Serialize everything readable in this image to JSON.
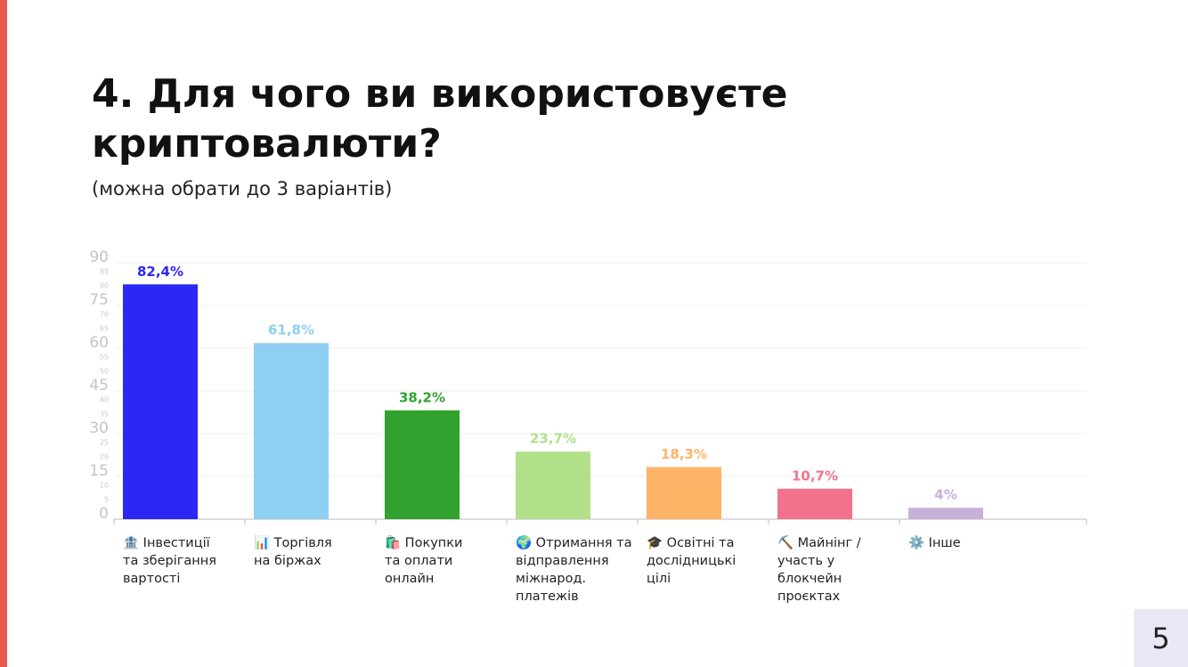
{
  "chart_data": {
    "type": "bar",
    "title": "4. Для чого ви використовуєте криптовалюти?",
    "subtitle": "(можна обрати до 3 варіантів)",
    "categories": [
      [
        "🏦 Інвестиції",
        "та зберігання",
        "вартості"
      ],
      [
        "📊 Торгівля",
        "на біржах"
      ],
      [
        "🛍️ Покупки",
        "та оплати",
        "онлайн"
      ],
      [
        "🌍 Отримання та",
        "відправлення",
        "міжнарод.",
        "платежів"
      ],
      [
        "🎓 Освітні та",
        "дослідницькі",
        "цілі"
      ],
      [
        "⛏️ Майнінг /",
        "участь у",
        "блокчейн",
        "проєктах"
      ],
      [
        "⚙️ Інше"
      ]
    ],
    "values": [
      82.4,
      61.8,
      38.2,
      23.7,
      18.3,
      10.7,
      4
    ],
    "value_labels": [
      "82,4%",
      "61,8%",
      "38,2%",
      "23,7%",
      "18,3%",
      "10,7%",
      "4%"
    ],
    "colors": [
      "#2b27f5",
      "#8ecff2",
      "#31a22e",
      "#b2e08a",
      "#fdb467",
      "#f2728c",
      "#c8b1d9"
    ],
    "ylim": [
      0,
      90
    ],
    "yticks": [
      0,
      15,
      30,
      45,
      60,
      75,
      90
    ],
    "yticks_minor": [
      5,
      10,
      20,
      25,
      35,
      40,
      50,
      55,
      65,
      70,
      80,
      85
    ],
    "grid": true
  },
  "page_number": "5"
}
